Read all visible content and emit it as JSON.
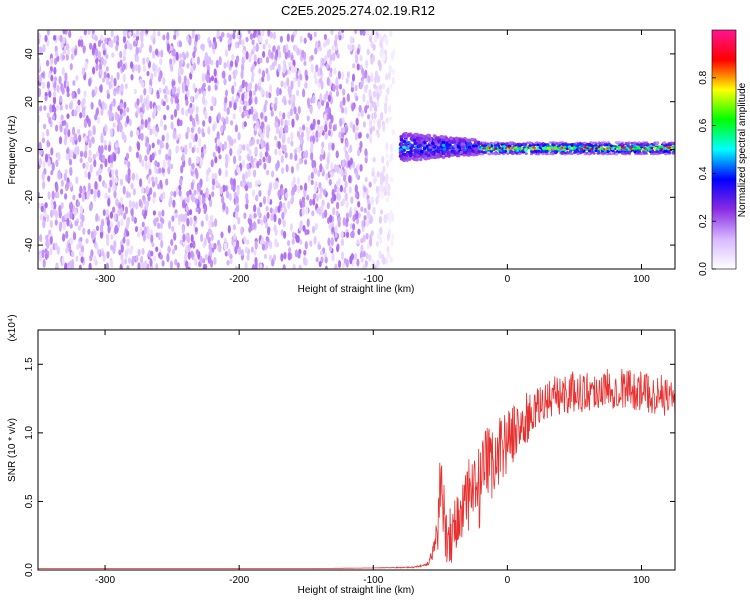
{
  "title": "C2E5.2025.274.02.19.R12",
  "chart_data": [
    {
      "type": "heatmap",
      "xlabel": "Height of straight line (km)",
      "ylabel": "Frequency (Hz)",
      "xlim": [
        -350,
        125
      ],
      "ylim": [
        -50,
        50
      ],
      "x_ticks": [
        -300,
        -200,
        -100,
        0,
        100
      ],
      "x_tick_labels": [
        "-300",
        "-200",
        "-100",
        "0",
        "100"
      ],
      "y_ticks": [
        -40,
        -20,
        0,
        20,
        40
      ],
      "y_tick_labels": [
        "-40",
        "-20",
        "0",
        "20",
        "40"
      ],
      "colorbar": {
        "label": "Normalized spectral amplitude",
        "range": [
          0,
          1
        ],
        "ticks": [
          0.0,
          0.2,
          0.4,
          0.6,
          0.8
        ],
        "tick_labels": [
          "0.0",
          "0.2",
          "0.4",
          "0.6",
          "0.8"
        ],
        "colors": [
          "#ffffff",
          "#d8b8ff",
          "#8a2be2",
          "#0000ff",
          "#00ffff",
          "#00ff00",
          "#ffff00",
          "#ff0000",
          "#ff1493"
        ]
      },
      "regions": [
        {
          "x_range": [
            -350,
            -80
          ],
          "freq_range": [
            -50,
            50
          ],
          "amplitude": [
            0.05,
            0.2
          ],
          "pattern": "noise"
        },
        {
          "x_range": [
            -80,
            -20
          ],
          "freq_range": [
            -5,
            7
          ],
          "amplitude": [
            0.2,
            0.55
          ],
          "pattern": "broadening band"
        },
        {
          "x_range": [
            -20,
            125
          ],
          "freq_center": 0.5,
          "freq_range": [
            -2,
            3
          ],
          "amplitude": [
            0.3,
            0.95
          ],
          "pattern": "narrow carrier line"
        }
      ],
      "grid": false
    },
    {
      "type": "line",
      "xlabel": "Height of straight line (km)",
      "ylabel": "SNR (10 * v/v)",
      "y_scale_label": "(x10⁴)",
      "xlim": [
        -350,
        125
      ],
      "ylim": [
        0,
        1.75
      ],
      "x_ticks": [
        -300,
        -200,
        -100,
        0,
        100
      ],
      "x_tick_labels": [
        "-300",
        "-200",
        "-100",
        "0",
        "100"
      ],
      "y_ticks": [
        0,
        0.5,
        1.0,
        1.5
      ],
      "y_tick_labels": [
        "0.0",
        "0.5",
        "1.0",
        "1.5"
      ],
      "color": "#e8302f",
      "x": [
        -350,
        -300,
        -250,
        -200,
        -150,
        -100,
        -70,
        -60,
        -56,
        -52,
        -50,
        -48,
        -45,
        -40,
        -35,
        -30,
        -25,
        -20,
        -15,
        -10,
        -5,
        0,
        5,
        10,
        15,
        20,
        25,
        30,
        40,
        50,
        60,
        70,
        80,
        90,
        100,
        110,
        120,
        125
      ],
      "y": [
        0.01,
        0.01,
        0.01,
        0.01,
        0.01,
        0.015,
        0.02,
        0.04,
        0.1,
        0.3,
        0.7,
        0.4,
        0.25,
        0.3,
        0.4,
        0.5,
        0.55,
        0.6,
        0.75,
        0.8,
        0.9,
        0.95,
        1.0,
        1.05,
        1.1,
        1.15,
        1.2,
        1.25,
        1.28,
        1.3,
        1.3,
        1.32,
        1.33,
        1.33,
        1.3,
        1.28,
        1.27,
        1.27
      ],
      "noise": [
        0,
        0,
        0,
        0,
        0,
        0,
        0.005,
        0.01,
        0.05,
        0.2,
        0.35,
        0.3,
        0.2,
        0.25,
        0.3,
        0.3,
        0.3,
        0.3,
        0.3,
        0.25,
        0.25,
        0.25,
        0.2,
        0.2,
        0.2,
        0.15,
        0.15,
        0.15,
        0.15,
        0.15,
        0.15,
        0.15,
        0.15,
        0.15,
        0.15,
        0.15,
        0.15,
        0.15
      ],
      "grid": false
    }
  ]
}
